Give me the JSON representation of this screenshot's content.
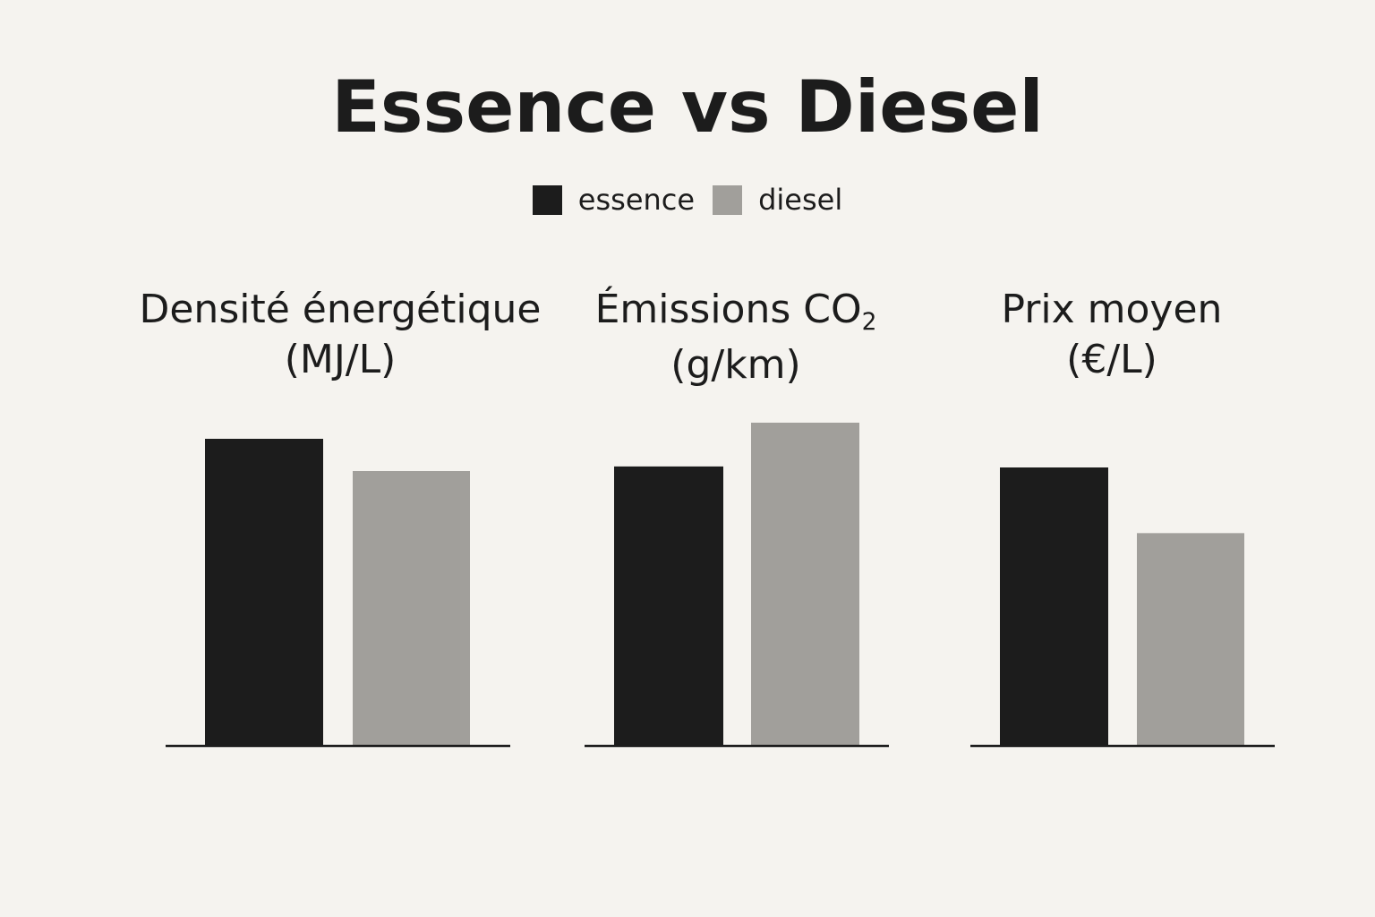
{
  "title": "Essence vs Diesel",
  "legend": [
    {
      "label": "essence",
      "color": "#1c1c1c"
    },
    {
      "label": "diesel",
      "color": "#a19f9b"
    }
  ],
  "chart_data": [
    {
      "type": "bar",
      "title_line1": "Densité énergétique",
      "title_line2": "(MJ/L)",
      "categories": [
        "essence",
        "diesel"
      ],
      "values": [
        34.2,
        30.6
      ],
      "ylim": [
        0,
        40
      ],
      "axis": "baseline only, no ticks"
    },
    {
      "type": "bar",
      "title_line1_pre": "Émissions CO",
      "title_line1_sub": "2",
      "title_line2": "(g/km)",
      "categories": [
        "essence",
        "diesel"
      ],
      "values": [
        140,
        162
      ],
      "ylim": [
        0,
        180
      ],
      "axis": "baseline only, no ticks"
    },
    {
      "type": "bar",
      "title_line1": "Prix moyen",
      "title_line2": "(€/L)",
      "categories": [
        "essence",
        "diesel"
      ],
      "values": [
        1.86,
        1.42
      ],
      "ylim": [
        0,
        2.4
      ],
      "axis": "baseline only, no ticks"
    }
  ]
}
